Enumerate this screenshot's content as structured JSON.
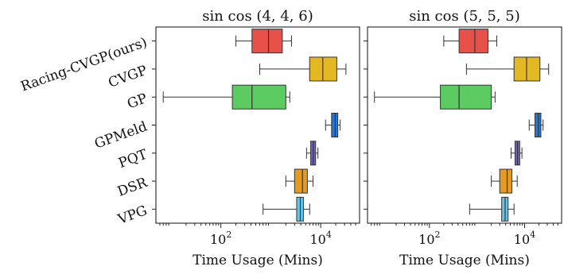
{
  "chart_data": [
    {
      "type": "box",
      "title": "sin cos (4, 4, 6)",
      "xlabel": "Time Usage (Mins)",
      "xscale": "log",
      "xlim": [
        5,
        60000
      ],
      "xticks": [
        {
          "value": 100,
          "base": "10",
          "exp": "2"
        },
        {
          "value": 10000,
          "base": "10",
          "exp": "4"
        }
      ],
      "categories": [
        "Racing-CVGP(ours)",
        "CVGP",
        "GP",
        "GPMeld",
        "PQT",
        "DSR",
        "VPG"
      ],
      "colors": [
        "#e8504a",
        "#e3b822",
        "#5ccc62",
        "#2277dd",
        "#6f63bd",
        "#e59a22",
        "#62c7ee"
      ],
      "boxes": [
        {
          "min": 200,
          "q1": 420,
          "median": 900,
          "q3": 1700,
          "max": 2600
        },
        {
          "min": 600,
          "q1": 6000,
          "median": 11000,
          "q3": 21000,
          "max": 32000
        },
        {
          "min": 7,
          "q1": 170,
          "median": 420,
          "q3": 2000,
          "max": 2400
        },
        {
          "min": 12500,
          "q1": 16500,
          "median": 19500,
          "q3": 22000,
          "max": 24500
        },
        {
          "min": 5200,
          "q1": 6300,
          "median": 7100,
          "q3": 7900,
          "max": 8800
        },
        {
          "min": 2000,
          "q1": 3000,
          "median": 4300,
          "q3": 5400,
          "max": 7000
        },
        {
          "min": 700,
          "q1": 3300,
          "median": 3900,
          "q3": 4500,
          "max": 6000
        }
      ]
    },
    {
      "type": "box",
      "title": "sin cos (5, 5, 5)",
      "xlabel": "Time Usage (Mins)",
      "xscale": "log",
      "xlim": [
        5,
        60000
      ],
      "xticks": [
        {
          "value": 100,
          "base": "10",
          "exp": "2"
        },
        {
          "value": 10000,
          "base": "10",
          "exp": "4"
        }
      ],
      "categories": [
        "Racing-CVGP(ours)",
        "CVGP",
        "GP",
        "GPMeld",
        "PQT",
        "DSR",
        "VPG"
      ],
      "colors": [
        "#e8504a",
        "#e3b822",
        "#5ccc62",
        "#2277dd",
        "#6f63bd",
        "#e59a22",
        "#62c7ee"
      ],
      "boxes": [
        {
          "min": 200,
          "q1": 420,
          "median": 900,
          "q3": 1700,
          "max": 2600
        },
        {
          "min": 600,
          "q1": 6000,
          "median": 11000,
          "q3": 21000,
          "max": 32000
        },
        {
          "min": 7,
          "q1": 170,
          "median": 420,
          "q3": 2000,
          "max": 2400
        },
        {
          "min": 12500,
          "q1": 16500,
          "median": 19500,
          "q3": 22000,
          "max": 24500
        },
        {
          "min": 5200,
          "q1": 6300,
          "median": 7100,
          "q3": 7900,
          "max": 8800
        },
        {
          "min": 2000,
          "q1": 3000,
          "median": 4300,
          "q3": 5400,
          "max": 7000
        },
        {
          "min": 700,
          "q1": 3300,
          "median": 3900,
          "q3": 4500,
          "max": 6000
        }
      ]
    }
  ]
}
